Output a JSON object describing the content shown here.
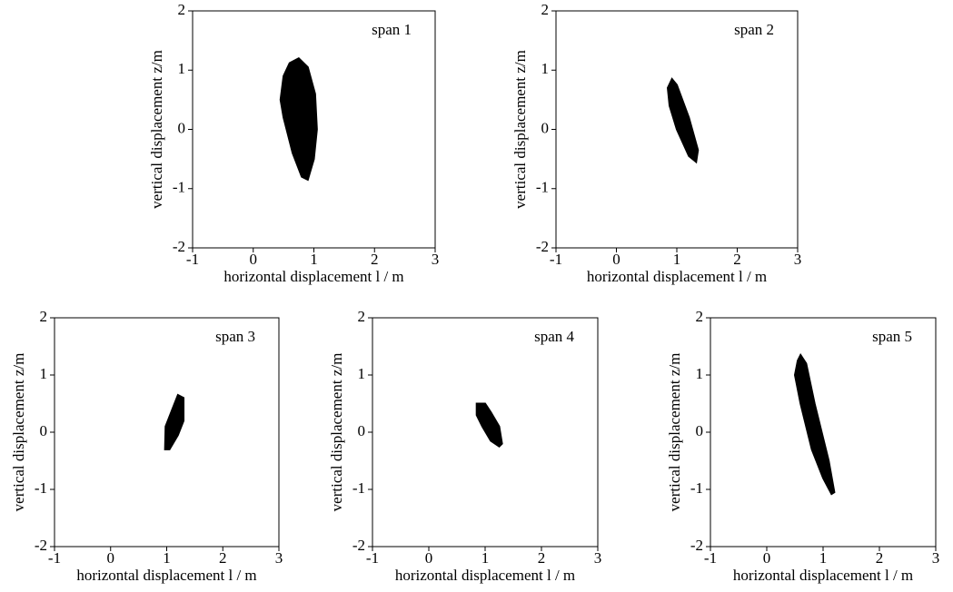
{
  "chart_data": [
    {
      "type": "line",
      "title": "span 1",
      "xlabel": "horizontal displacement l / m",
      "ylabel": "vertical displacement z/m",
      "xlim": [
        -1,
        3
      ],
      "ylim": [
        -2,
        2
      ],
      "xticks": [
        -1,
        0,
        1,
        2,
        3
      ],
      "yticks": [
        -2,
        -1,
        0,
        1,
        2
      ],
      "color": "#000000",
      "x": [
        0.75,
        0.9,
        1.02,
        1.05,
        1.0,
        0.9,
        0.8,
        0.65,
        0.5,
        0.45,
        0.5,
        0.6,
        0.75
      ],
      "y": [
        1.2,
        1.05,
        0.6,
        0.0,
        -0.5,
        -0.85,
        -0.8,
        -0.4,
        0.2,
        0.5,
        0.9,
        1.12,
        1.2
      ]
    },
    {
      "type": "line",
      "title": "span 2",
      "xlabel": "horizontal displacement l / m",
      "ylabel": "vertical displacement z/m",
      "xlim": [
        -1,
        3
      ],
      "ylim": [
        -2,
        2
      ],
      "xticks": [
        -1,
        0,
        1,
        2,
        3
      ],
      "yticks": [
        -2,
        -1,
        0,
        1,
        2
      ],
      "color": "#000000",
      "x": [
        0.92,
        1.0,
        1.2,
        1.35,
        1.32,
        1.2,
        1.0,
        0.88,
        0.85,
        0.92
      ],
      "y": [
        0.85,
        0.75,
        0.2,
        -0.35,
        -0.55,
        -0.45,
        0.0,
        0.4,
        0.7,
        0.85
      ]
    },
    {
      "type": "line",
      "title": "span 3",
      "xlabel": "horizontal displacement l / m",
      "ylabel": "vertical displacement z/m",
      "xlim": [
        -1,
        3
      ],
      "ylim": [
        -2,
        2
      ],
      "xticks": [
        -1,
        0,
        1,
        2,
        3
      ],
      "yticks": [
        -2,
        -1,
        0,
        1,
        2
      ],
      "color": "#000000",
      "x": [
        1.2,
        1.3,
        1.3,
        1.2,
        1.05,
        0.97,
        0.98,
        1.1,
        1.2
      ],
      "y": [
        0.65,
        0.6,
        0.2,
        -0.05,
        -0.3,
        -0.3,
        0.1,
        0.4,
        0.65
      ]
    },
    {
      "type": "line",
      "title": "span 4",
      "xlabel": "horizontal displacement l / m",
      "ylabel": "vertical displacement z/m",
      "xlim": [
        -1,
        3
      ],
      "ylim": [
        -2,
        2
      ],
      "xticks": [
        -1,
        0,
        1,
        2,
        3
      ],
      "yticks": [
        -2,
        -1,
        0,
        1,
        2
      ],
      "color": "#000000",
      "x": [
        0.85,
        1.0,
        1.1,
        1.25,
        1.3,
        1.25,
        1.1,
        0.95,
        0.85,
        0.85
      ],
      "y": [
        0.5,
        0.5,
        0.35,
        0.1,
        -0.2,
        -0.25,
        -0.15,
        0.1,
        0.3,
        0.5
      ]
    },
    {
      "type": "line",
      "title": "span 5",
      "xlabel": "horizontal displacement l / m",
      "ylabel": "vertical displacement z/m",
      "xlim": [
        -1,
        3
      ],
      "ylim": [
        -2,
        2
      ],
      "xticks": [
        -1,
        0,
        1,
        2,
        3
      ],
      "yticks": [
        -2,
        -1,
        0,
        1,
        2
      ],
      "color": "#000000",
      "x": [
        0.6,
        0.7,
        0.85,
        1.1,
        1.2,
        1.15,
        1.0,
        0.8,
        0.6,
        0.5,
        0.55,
        0.6
      ],
      "y": [
        1.35,
        1.2,
        0.5,
        -0.5,
        -1.05,
        -1.08,
        -0.8,
        -0.3,
        0.5,
        1.0,
        1.25,
        1.35
      ]
    }
  ]
}
